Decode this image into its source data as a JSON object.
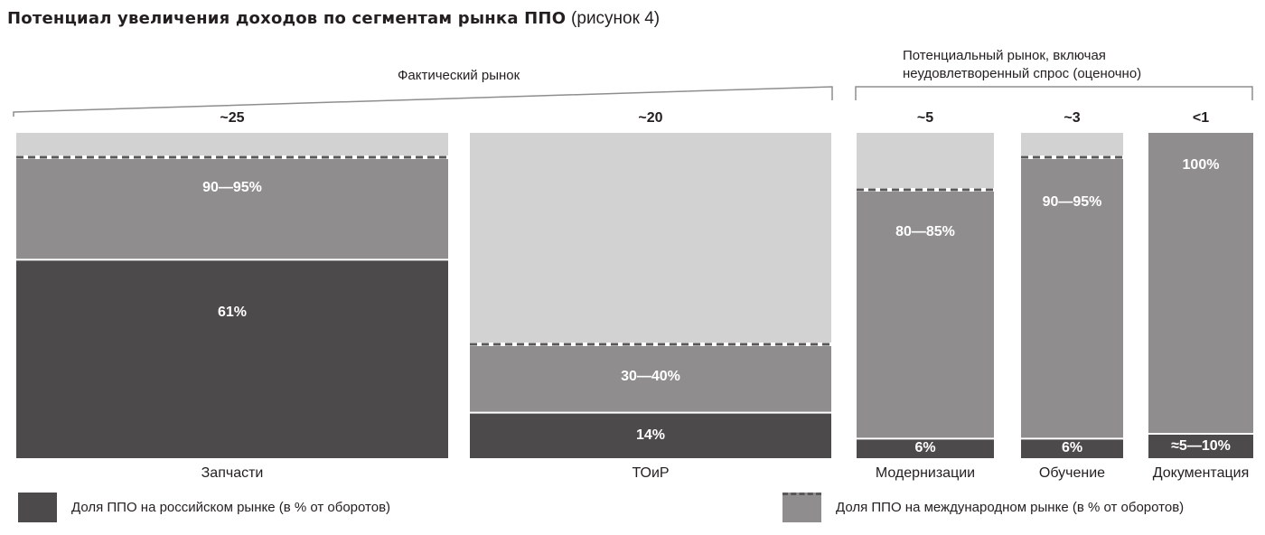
{
  "title": {
    "main": "Потенциал увеличения доходов по сегментам рынка ППО",
    "sub": "(рисунок 4)"
  },
  "brackets": {
    "actual": "Фактический рынок",
    "potential_line1": "Потенциальный рынок, включая",
    "potential_line2": "неудовлетворенный спрос (оценочно)"
  },
  "legend": {
    "russian": "Доля ППО на российском рынке (в % от оборотов)",
    "international": "Доля ППО на международном рынке (в % от оборотов)"
  },
  "colors": {
    "russian": "#4d4a4b",
    "international": "#8f8d8e",
    "potential": "#d3d2d2",
    "dash": "#5a5758"
  },
  "chart_data": {
    "type": "bar",
    "title": "Потенциал увеличения доходов по сегментам рынка ППО",
    "categories": [
      "Запчасти",
      "ТОиР",
      "Модернизации",
      "Обучение",
      "Документация"
    ],
    "market_size": [
      "~25",
      "~20",
      "~5",
      "~3",
      "<1"
    ],
    "series": [
      {
        "name": "Доля ППО на российском рынке (в % от оборотов)",
        "labels": [
          "61%",
          "14%",
          "6%",
          "6%",
          "≈5—10%"
        ],
        "values": [
          61,
          14,
          6,
          6,
          7.5
        ]
      },
      {
        "name": "Доля ППО на международном рынке (в % от оборотов)",
        "labels": [
          "90—95%",
          "30—40%",
          "80—85%",
          "90—95%",
          "100%"
        ],
        "values": [
          92.5,
          35,
          82.5,
          92.5,
          100
        ]
      }
    ],
    "ylim": [
      0,
      100
    ]
  }
}
